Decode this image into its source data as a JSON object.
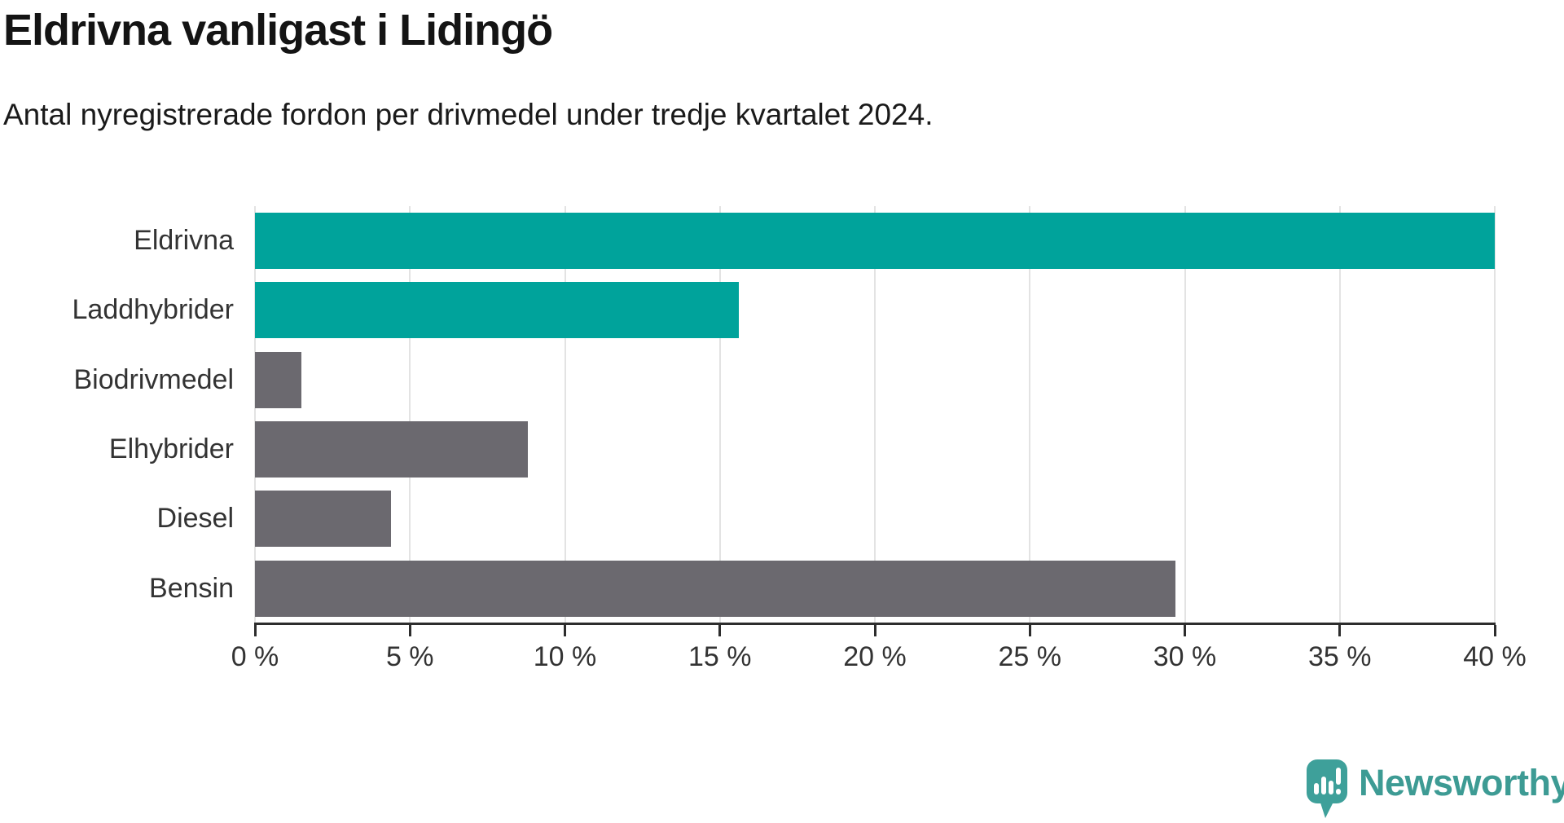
{
  "chart_data": {
    "type": "bar",
    "orientation": "horizontal",
    "title": "Eldrivna vanligast i Lidingö",
    "subtitle": "Antal nyregistrerade fordon per drivmedel under tredje kvartalet 2024.",
    "categories": [
      "Eldrivna",
      "Laddhybrider",
      "Biodrivmedel",
      "Elhybrider",
      "Diesel",
      "Bensin"
    ],
    "values": [
      40.0,
      15.6,
      1.5,
      8.8,
      4.4,
      29.7
    ],
    "unit": "%",
    "bar_colors": [
      "#00a39b",
      "#00a39b",
      "#6b696f",
      "#6b696f",
      "#6b696f",
      "#6b696f"
    ],
    "accent_color": "#00a39b",
    "neutral_color": "#6b696f",
    "xlabel": "",
    "ylabel": "",
    "xlim": [
      0,
      40
    ],
    "x_ticks": [
      0,
      5,
      10,
      15,
      20,
      25,
      30,
      35,
      40
    ],
    "x_tick_labels": [
      "0 %",
      "5 %",
      "10 %",
      "15 %",
      "20 %",
      "25 %",
      "30 %",
      "35 %",
      "40 %"
    ],
    "grid": "vertical",
    "gridline_color": "#e3e3e3",
    "axis_color": "#2d2d2d",
    "legend": "none"
  },
  "footer": {
    "brand": "Newsworthy",
    "brand_color": "#3d9b94",
    "logo_icon": "speech-bubble-bar-chart-icon",
    "logo_icon_color": "#3ea09a"
  }
}
